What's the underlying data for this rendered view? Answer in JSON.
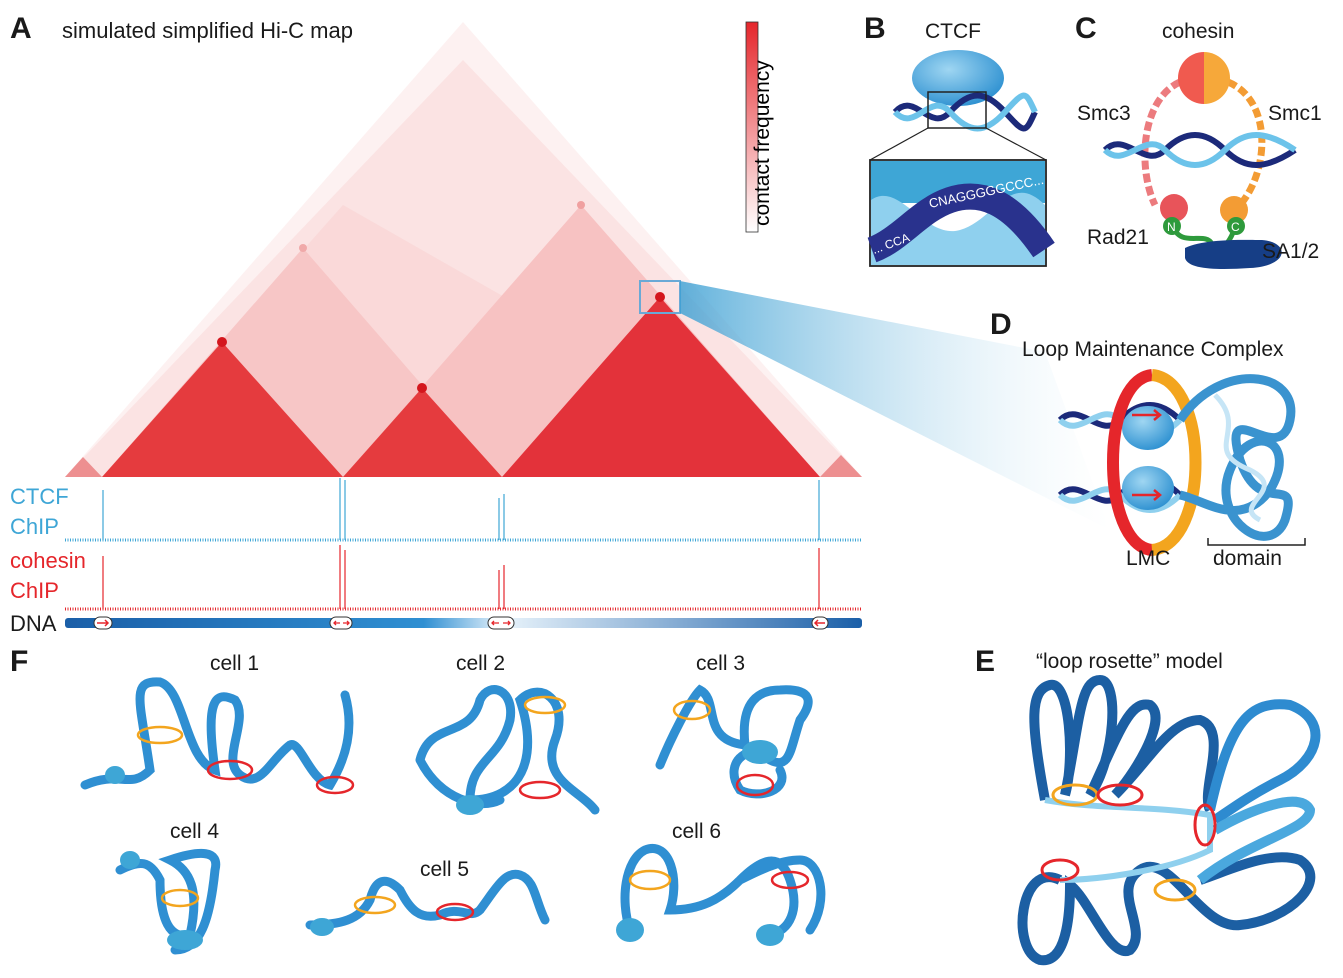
{
  "panels": {
    "A": "A",
    "B": "B",
    "C": "C",
    "D": "D",
    "E": "E",
    "F": "F"
  },
  "panelA": {
    "title": "simulated simplified Hi-C map",
    "colorbar_label": "contact frequency",
    "tracks": {
      "ctcf_line1": "CTCF",
      "ctcf_line2": "ChIP",
      "cohesin_line1": "cohesin",
      "cohesin_line2": "ChIP",
      "dna": "DNA"
    }
  },
  "panelB": {
    "title": "CTCF",
    "motif_right": "CNAGGGGGCCC...",
    "motif_left": "... CCA"
  },
  "panelC": {
    "title": "cohesin",
    "smc3": "Smc3",
    "smc1": "Smc1",
    "rad21": "Rad21",
    "sa": "SA1/2",
    "n_terminus": "N",
    "c_terminus": "C"
  },
  "panelD": {
    "title": "Loop Maintenance Complex",
    "lmc": "LMC",
    "domain": "domain"
  },
  "panelE": {
    "title": "“loop rosette” model"
  },
  "panelF": {
    "cells": [
      "cell 1",
      "cell 2",
      "cell 3",
      "cell 4",
      "cell 5",
      "cell 6"
    ]
  },
  "colors": {
    "hic_red": "#e5262b",
    "ctcf_blue": "#3ea6d6",
    "dna_navy": "#1c2a7a",
    "cohesin_orange": "#f3a51e",
    "sa_navy": "#163e86",
    "green": "#2e9a3c"
  }
}
